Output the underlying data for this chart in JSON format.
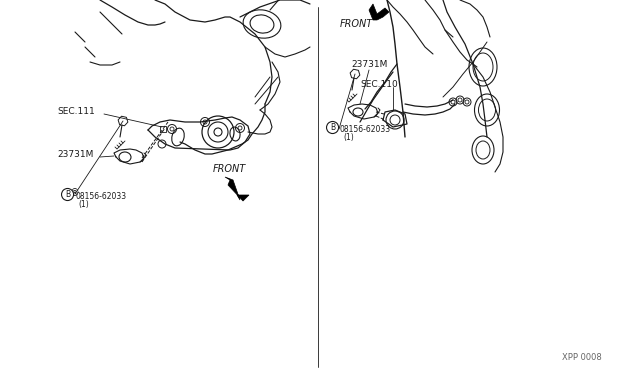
{
  "bg_color": "#ffffff",
  "line_color": "#1a1a1a",
  "fig_width": 6.4,
  "fig_height": 3.72,
  "dpi": 100,
  "diagram_id": "XPP 0008",
  "left_sec": "SEC.111",
  "right_sec": "SEC.110",
  "part_label": "23731M",
  "bolt_label_left": "B08156-62033\n(1)",
  "bolt_label_right": "B08156-62033\n(1)",
  "front_label": "FRONT"
}
